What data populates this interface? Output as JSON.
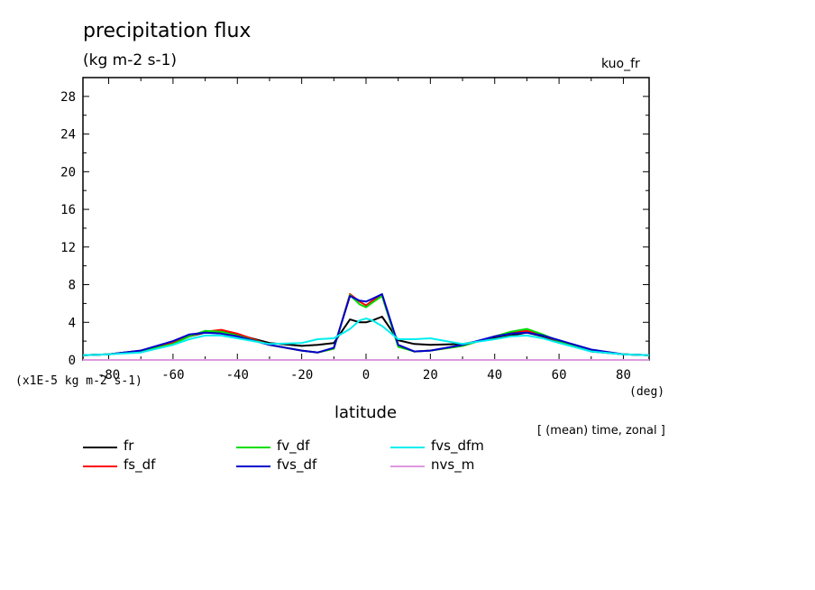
{
  "header": {
    "title": "precipitation flux",
    "units": "(kg m-2 s-1)",
    "run": "kuo_fr",
    "scale_note": "(x1E-5 kg m-2 s-1)",
    "x_unit": "(deg)",
    "x_label": "latitude",
    "mean_note": "[ (mean) time, zonal ]"
  },
  "chart_data": {
    "type": "line",
    "title": "precipitation flux",
    "ylabel": "(kg m-2 s-1)",
    "xlabel": "latitude",
    "xlim": [
      -88,
      88
    ],
    "ylim": [
      0,
      30
    ],
    "xticks": [
      -80,
      -60,
      -40,
      -20,
      0,
      20,
      40,
      60,
      80
    ],
    "xtick_labels": [
      "-80",
      "-60",
      "-40",
      "-20",
      "0",
      "20",
      "40",
      "60",
      "80"
    ],
    "yticks": [
      0,
      4,
      8,
      12,
      16,
      20,
      24,
      28
    ],
    "ytick_labels": [
      "0",
      "4",
      "8",
      "12",
      "16",
      "20",
      "24",
      "28"
    ],
    "x": [
      -88,
      -80,
      -70,
      -60,
      -55,
      -50,
      -45,
      -40,
      -30,
      -20,
      -15,
      -10,
      -5,
      -2,
      0,
      2,
      5,
      10,
      15,
      20,
      30,
      40,
      45,
      50,
      55,
      60,
      70,
      80,
      88
    ],
    "series": [
      {
        "name": "fr",
        "color": "#000000",
        "values": [
          0.5,
          0.6,
          1.0,
          1.8,
          2.5,
          2.9,
          3.0,
          2.7,
          1.8,
          1.5,
          1.6,
          1.8,
          4.3,
          4.0,
          4.0,
          4.2,
          4.6,
          2.1,
          1.7,
          1.6,
          1.7,
          2.3,
          2.6,
          2.9,
          2.5,
          1.9,
          0.9,
          0.6,
          0.5
        ]
      },
      {
        "name": "fs_df",
        "color": "#ff0000",
        "values": [
          0.5,
          0.6,
          0.9,
          1.8,
          2.5,
          3.0,
          3.2,
          2.8,
          1.6,
          1.0,
          0.8,
          1.2,
          7.0,
          6.2,
          5.8,
          6.3,
          6.8,
          1.5,
          0.9,
          1.0,
          1.5,
          2.5,
          2.9,
          3.1,
          2.6,
          2.0,
          1.0,
          0.6,
          0.5
        ]
      },
      {
        "name": "fv_df",
        "color": "#00dd00",
        "values": [
          0.5,
          0.6,
          0.9,
          1.7,
          2.5,
          3.1,
          3.0,
          2.6,
          1.6,
          1.0,
          0.8,
          1.2,
          6.9,
          5.9,
          5.6,
          6.1,
          6.8,
          1.4,
          0.9,
          1.0,
          1.5,
          2.5,
          3.0,
          3.3,
          2.7,
          2.0,
          1.0,
          0.6,
          0.5
        ]
      },
      {
        "name": "fvs_df",
        "color": "#0000cc",
        "values": [
          0.5,
          0.6,
          1.0,
          2.0,
          2.7,
          2.9,
          2.8,
          2.5,
          1.6,
          1.0,
          0.8,
          1.3,
          6.8,
          6.3,
          6.2,
          6.5,
          7.0,
          1.6,
          0.9,
          1.0,
          1.6,
          2.5,
          2.8,
          2.9,
          2.6,
          2.1,
          1.1,
          0.6,
          0.5
        ]
      },
      {
        "name": "fvs_dfm",
        "color": "#00eeee",
        "values": [
          0.5,
          0.6,
          0.8,
          1.6,
          2.2,
          2.6,
          2.6,
          2.3,
          1.7,
          1.8,
          2.2,
          2.3,
          3.3,
          4.2,
          4.4,
          4.2,
          3.6,
          2.2,
          2.2,
          2.3,
          1.7,
          2.2,
          2.5,
          2.6,
          2.3,
          1.8,
          0.9,
          0.6,
          0.5
        ]
      },
      {
        "name": "nvs_m",
        "color": "#dd99dd",
        "values": [
          0,
          0,
          0,
          0,
          0,
          0,
          0,
          0,
          0,
          0,
          0,
          0,
          0,
          0,
          0,
          0,
          0,
          0,
          0,
          0,
          0,
          0,
          0,
          0,
          0,
          0,
          0,
          0,
          0
        ]
      }
    ]
  }
}
